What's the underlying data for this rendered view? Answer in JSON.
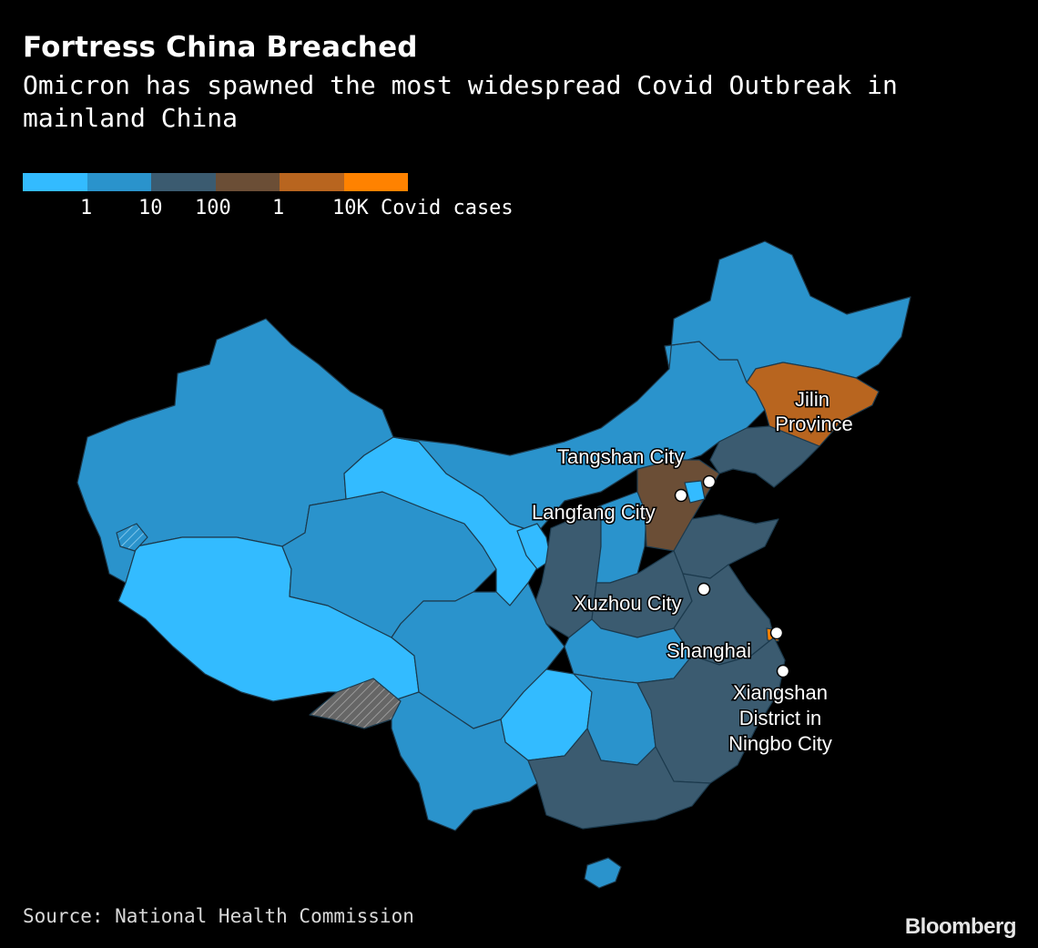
{
  "header": {
    "title": "Fortress China Breached",
    "subtitle": "Omicron has spawned the most widespread Covid Outbreak in mainland China"
  },
  "legend": {
    "colors": [
      "#33bbff",
      "#2a93cc",
      "#3b5b70",
      "#6b4e36",
      "#b8651f",
      "#ff8200"
    ],
    "ticks": [
      "1",
      "10",
      "100",
      "1",
      "10K Covid cases"
    ]
  },
  "map": {
    "labels": {
      "jilin_line1": "Jilin",
      "jilin_line2": "Province",
      "tangshan": "Tangshan City",
      "langfang": "Langfang City",
      "xuzhou": "Xuzhou City",
      "shanghai": "Shanghai",
      "xiangshan_line1": "Xiangshan",
      "xiangshan_line2": "District in",
      "xiangshan_line3": "Ningbo City"
    }
  },
  "footer": {
    "source": "Source: National Health Commission",
    "brand": "Bloomberg"
  }
}
